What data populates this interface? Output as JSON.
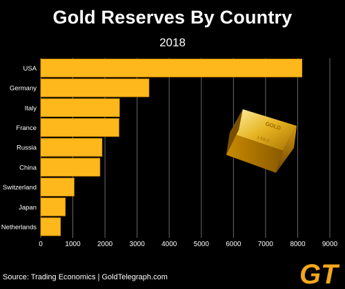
{
  "header": {
    "title": "Gold Reserves By Country",
    "subtitle": "2018"
  },
  "footer": {
    "source": "Source: Trading Economics | GoldTelegraph.com"
  },
  "logo": {
    "text": "GT"
  },
  "colors": {
    "background": "#000000",
    "bar": "#ffb81c",
    "bar_edge": "#d49000",
    "grid": "#6a6a6a",
    "text": "#ffffff",
    "logo_gold": "#f2a71b"
  },
  "chart_data": {
    "type": "bar",
    "orientation": "horizontal",
    "title": "Gold Reserves By Country",
    "subtitle": "2018",
    "categories": [
      "USA",
      "Germany",
      "Italy",
      "France",
      "Russia",
      "China",
      "Switzerland",
      "Japan",
      "Netherlands"
    ],
    "values": [
      8133,
      3370,
      2452,
      2436,
      1909,
      1843,
      1040,
      765,
      615
    ],
    "xlim": [
      0,
      9000
    ],
    "xticks": [
      0,
      1000,
      2000,
      3000,
      4000,
      5000,
      6000,
      7000,
      8000,
      9000
    ],
    "grid": true,
    "legend": "none"
  }
}
